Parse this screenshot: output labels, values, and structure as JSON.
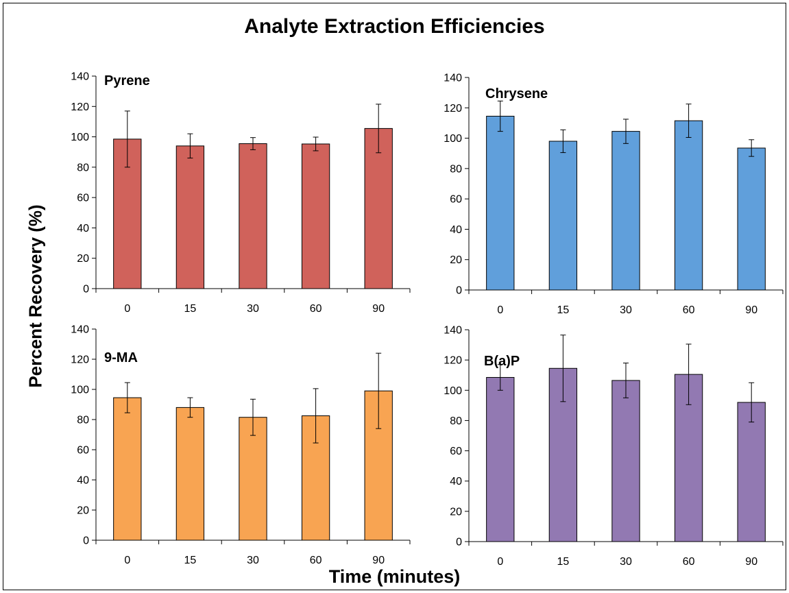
{
  "figure": {
    "title": "Analyte Extraction Efficiencies",
    "ylabel": "Percent Recovery (%)",
    "xlabel": "Time (minutes)"
  },
  "chart_data": [
    {
      "type": "bar",
      "title": "Pyrene",
      "categories": [
        "0",
        "15",
        "30",
        "60",
        "90"
      ],
      "values": [
        98.5,
        94,
        95.5,
        95.3,
        105.5
      ],
      "error": [
        18.5,
        8,
        4,
        4.5,
        16
      ],
      "ylim": [
        0,
        140
      ],
      "yticks": [
        0,
        20,
        40,
        60,
        80,
        100,
        120,
        140
      ],
      "color": "#d0625b",
      "grid": false
    },
    {
      "type": "bar",
      "title": "Chrysene",
      "categories": [
        "0",
        "15",
        "30",
        "60",
        "90"
      ],
      "values": [
        114.5,
        98,
        104.5,
        111.5,
        93.5
      ],
      "error": [
        10,
        7.5,
        8,
        11,
        5.5
      ],
      "ylim": [
        0,
        140
      ],
      "yticks": [
        0,
        20,
        40,
        60,
        80,
        100,
        120,
        140
      ],
      "color": "#609fdb",
      "grid": false
    },
    {
      "type": "bar",
      "title": "9-MA",
      "categories": [
        "0",
        "15",
        "30",
        "60",
        "90"
      ],
      "values": [
        94.5,
        88,
        81.5,
        82.5,
        99
      ],
      "error": [
        10,
        6.5,
        12,
        18,
        25
      ],
      "ylim": [
        0,
        140
      ],
      "yticks": [
        0,
        20,
        40,
        60,
        80,
        100,
        120,
        140
      ],
      "color": "#f8a452",
      "grid": false
    },
    {
      "type": "bar",
      "title": "B(a)P",
      "categories": [
        "0",
        "15",
        "30",
        "60",
        "90"
      ],
      "values": [
        108.5,
        114.5,
        106.5,
        110.5,
        92
      ],
      "error": [
        8.5,
        22,
        11.5,
        20,
        13
      ],
      "ylim": [
        0,
        140
      ],
      "yticks": [
        0,
        20,
        40,
        60,
        80,
        100,
        120,
        140
      ],
      "color": "#9279b2",
      "grid": false
    }
  ]
}
